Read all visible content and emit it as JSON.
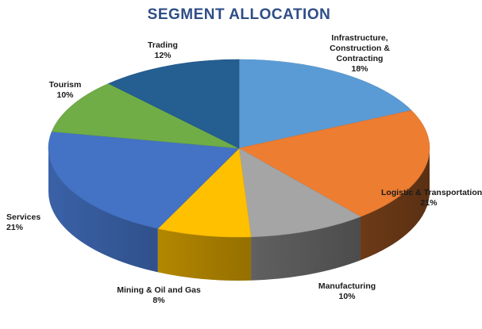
{
  "chart_data": {
    "type": "pie",
    "title": "SEGMENT ALLOCATION",
    "slices": [
      {
        "label": "Infrastructure, Construction & Contracting",
        "label_lines": [
          "Infrastructure,",
          "Construction &",
          "Contracting"
        ],
        "percent_label": "18%",
        "value": 18,
        "color": "#5b9bd5"
      },
      {
        "label": "Logistic & Transportation",
        "label_lines": [
          "Logistic & Transportation"
        ],
        "percent_label": "21%",
        "value": 21,
        "color": "#ed7d31"
      },
      {
        "label": "Manufacturing",
        "label_lines": [
          "Manufacturing"
        ],
        "percent_label": "10%",
        "value": 10,
        "color": "#a5a5a5"
      },
      {
        "label": "Mining & Oil and Gas",
        "label_lines": [
          "Mining & Oil and Gas"
        ],
        "percent_label": "8%",
        "value": 8,
        "color": "#ffc000"
      },
      {
        "label": "Services",
        "label_lines": [
          "Services"
        ],
        "percent_label": "21%",
        "value": 21,
        "color": "#4472c4"
      },
      {
        "label": "Tourism",
        "label_lines": [
          "Tourism"
        ],
        "percent_label": "10%",
        "value": 10,
        "color": "#70ad47"
      },
      {
        "label": "Trading",
        "label_lines": [
          "Trading"
        ],
        "percent_label": "12%",
        "value": 12,
        "color": "#255e91"
      }
    ],
    "style": "3d",
    "legend": "none"
  }
}
